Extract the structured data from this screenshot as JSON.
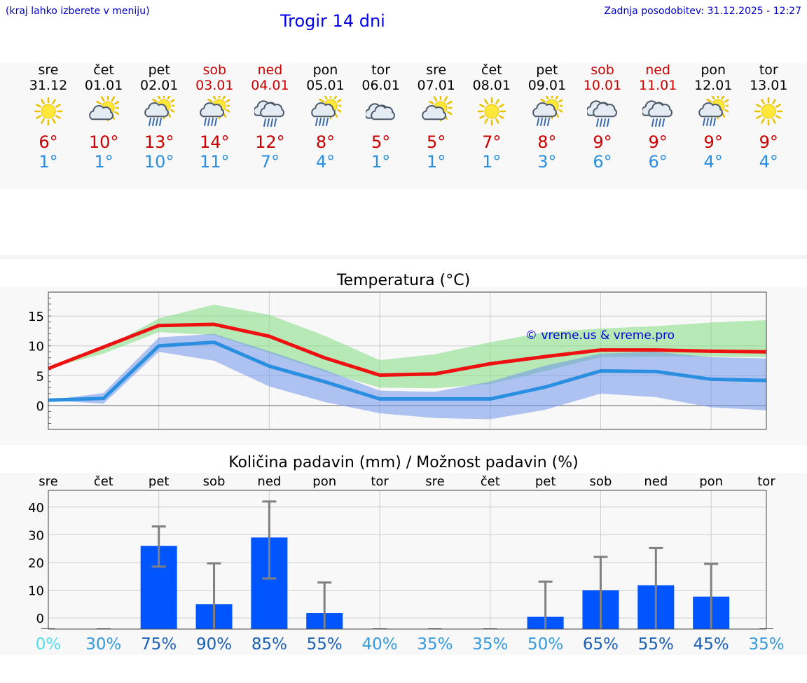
{
  "header": {
    "location_hint": "(kraj lahko izberete v meniju)",
    "title": "Trogir 14 dni",
    "updated": "Zadnja posodobitev: 31.12.2025 - 12:27"
  },
  "colors": {
    "max_line": "#ee1111",
    "min_line": "#2a8fe0",
    "max_band": "#7fdc7f",
    "min_band": "#6f95ea",
    "bar": "#0055ff",
    "error_bar": "#808080",
    "weekend_text": "#cc0000"
  },
  "days": [
    {
      "name": "sre",
      "date": "31.12",
      "weekend": false,
      "icon": "sun-icon",
      "tmax": "6°",
      "tmin": "1°"
    },
    {
      "name": "čet",
      "date": "01.01",
      "weekend": false,
      "icon": "cloud-sun-icon",
      "tmax": "10°",
      "tmin": "1°"
    },
    {
      "name": "pet",
      "date": "02.01",
      "weekend": false,
      "icon": "sun-cloud-rain-icon",
      "tmax": "13°",
      "tmin": "10°"
    },
    {
      "name": "sob",
      "date": "03.01",
      "weekend": true,
      "icon": "sun-cloud-rain-icon",
      "tmax": "14°",
      "tmin": "11°"
    },
    {
      "name": "ned",
      "date": "04.01",
      "weekend": true,
      "icon": "cloud-rain-icon",
      "tmax": "12°",
      "tmin": "7°"
    },
    {
      "name": "pon",
      "date": "05.01",
      "weekend": false,
      "icon": "sun-cloud-rain-icon",
      "tmax": "8°",
      "tmin": "4°"
    },
    {
      "name": "tor",
      "date": "06.01",
      "weekend": false,
      "icon": "cloud-icon",
      "tmax": "5°",
      "tmin": "1°"
    },
    {
      "name": "sre",
      "date": "07.01",
      "weekend": false,
      "icon": "cloud-sun-icon",
      "tmax": "5°",
      "tmin": "1°"
    },
    {
      "name": "čet",
      "date": "08.01",
      "weekend": false,
      "icon": "sun-icon",
      "tmax": "7°",
      "tmin": "1°"
    },
    {
      "name": "pet",
      "date": "09.01",
      "weekend": false,
      "icon": "sun-cloud-rain-icon",
      "tmax": "8°",
      "tmin": "3°"
    },
    {
      "name": "sob",
      "date": "10.01",
      "weekend": true,
      "icon": "cloud-rain-icon",
      "tmax": "9°",
      "tmin": "6°"
    },
    {
      "name": "ned",
      "date": "11.01",
      "weekend": true,
      "icon": "cloud-rain-icon",
      "tmax": "9°",
      "tmin": "6°"
    },
    {
      "name": "pon",
      "date": "12.01",
      "weekend": false,
      "icon": "sun-cloud-rain-icon",
      "tmax": "9°",
      "tmin": "4°"
    },
    {
      "name": "tor",
      "date": "13.01",
      "weekend": false,
      "icon": "sun-icon",
      "tmax": "9°",
      "tmin": "4°"
    }
  ],
  "chart_data": [
    {
      "type": "line",
      "title": "Temperatura (°C)",
      "watermark": "© vreme.us & vreme.pro",
      "ylim": [
        -4,
        19
      ],
      "yticks": [
        0,
        5,
        10,
        15
      ],
      "x": [
        0,
        1,
        2,
        3,
        4,
        5,
        6,
        7,
        8,
        9,
        10,
        11,
        12,
        13
      ],
      "series": [
        {
          "name": "max",
          "values": [
            6.2,
            9.8,
            13.4,
            13.6,
            11.6,
            8.0,
            5.1,
            5.3,
            7.0,
            8.2,
            9.3,
            9.3,
            9.1,
            9.0
          ]
        },
        {
          "name": "min",
          "values": [
            0.9,
            1.2,
            10.0,
            10.6,
            6.6,
            4.0,
            1.1,
            1.1,
            1.1,
            3.1,
            5.8,
            5.7,
            4.4,
            4.2
          ]
        }
      ],
      "max_band": {
        "low": [
          6.2,
          8.7,
          12.3,
          11.8,
          8.8,
          5.7,
          3.0,
          2.9,
          3.6,
          5.8,
          8.1,
          8.2,
          8.2,
          8.1
        ],
        "high": [
          6.2,
          9.5,
          14.6,
          16.9,
          15.2,
          11.7,
          7.6,
          8.6,
          10.6,
          12.3,
          12.9,
          13.3,
          13.9,
          14.3
        ]
      },
      "min_band": {
        "low": [
          0.9,
          0.3,
          9.0,
          7.5,
          3.2,
          0.6,
          -1.3,
          -2.1,
          -2.3,
          -0.7,
          2.0,
          1.4,
          -0.3,
          -0.8
        ],
        "high": [
          0.9,
          2.1,
          11.4,
          12.0,
          9.1,
          6.0,
          2.5,
          2.3,
          4.0,
          6.7,
          8.7,
          9.0,
          8.1,
          7.9
        ]
      }
    },
    {
      "type": "bar",
      "title": "Količina padavin (mm) / Možnost padavin (%)",
      "categories": [
        "sre",
        "čet",
        "pet",
        "sob",
        "ned",
        "pon",
        "tor",
        "sre",
        "čet",
        "pet",
        "sob",
        "ned",
        "pon",
        "tor"
      ],
      "ylim": [
        -4,
        46
      ],
      "yticks": [
        {
          "value": 40,
          "label": "40"
        },
        {
          "value": 30,
          "label": "30"
        },
        {
          "value": 20,
          "label": "20"
        },
        {
          "value": 10,
          "label": "10"
        },
        {
          "value": 0,
          "label": "0"
        }
      ],
      "values": [
        0,
        0,
        26.0,
        5.0,
        29.0,
        1.8,
        0,
        0,
        0,
        0.4,
        10.0,
        11.8,
        7.7,
        0
      ],
      "error_high": [
        0,
        0,
        33.0,
        19.7,
        42.0,
        12.8,
        0,
        0,
        0,
        13.1,
        22.0,
        25.2,
        19.5,
        0
      ],
      "error_low": [
        0,
        0,
        18.5,
        0,
        14.2,
        0,
        0,
        0,
        0,
        0,
        0,
        0,
        0,
        0
      ],
      "probability": [
        "0%",
        "30%",
        "75%",
        "90%",
        "85%",
        "55%",
        "40%",
        "35%",
        "35%",
        "50%",
        "65%",
        "55%",
        "45%",
        "35%"
      ],
      "probability_colors": [
        "#55ddee",
        "#3399dd",
        "#1a5fb4",
        "#1a5fb4",
        "#1a5fb4",
        "#1a5fb4",
        "#3399dd",
        "#3399dd",
        "#3399dd",
        "#3399dd",
        "#1a5fb4",
        "#1a5fb4",
        "#1a5fb4",
        "#3399dd"
      ]
    }
  ]
}
